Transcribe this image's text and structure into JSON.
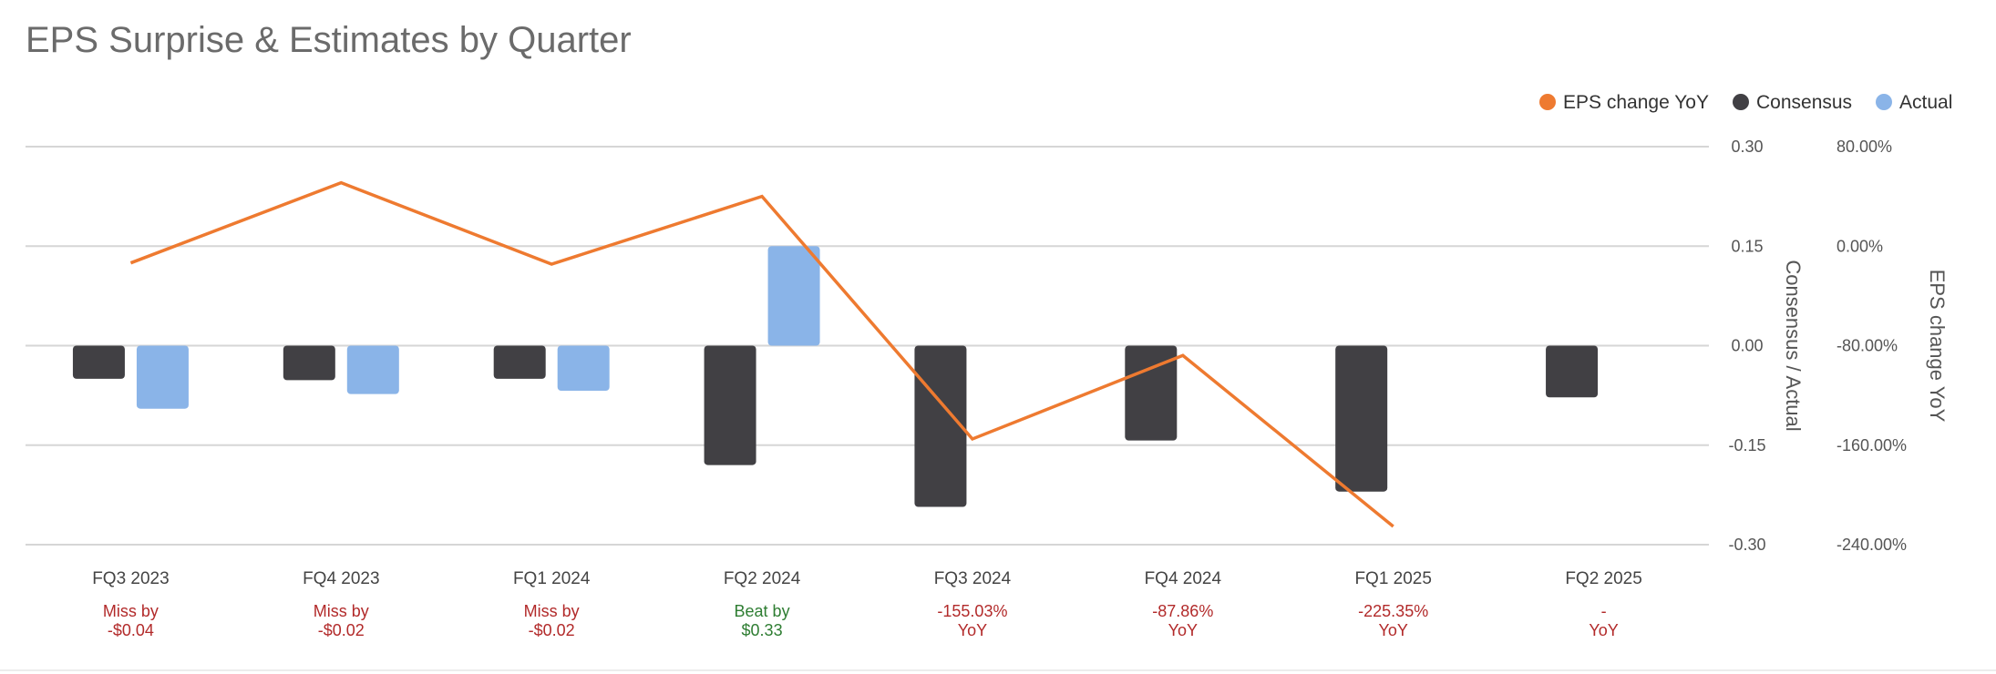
{
  "chart_data": {
    "type": "bar",
    "title": "EPS Surprise & Estimates by Quarter",
    "categories": [
      "FQ3 2023",
      "FQ4 2023",
      "FQ1 2024",
      "FQ2 2024",
      "FQ3 2024",
      "FQ4 2024",
      "FQ1 2025",
      "FQ2 2025"
    ],
    "series": [
      {
        "name": "Consensus",
        "kind": "bar",
        "axis": "left",
        "color": "#414044",
        "values": [
          -0.05,
          -0.052,
          -0.05,
          -0.18,
          -0.243,
          -0.143,
          -0.22,
          -0.078
        ]
      },
      {
        "name": "Actual",
        "kind": "bar",
        "axis": "left",
        "color": "#8ab4e8",
        "values": [
          -0.095,
          -0.073,
          -0.068,
          0.15,
          null,
          null,
          null,
          null
        ]
      },
      {
        "name": "EPS change YoY",
        "kind": "line",
        "axis": "right",
        "color": "#ee7a30",
        "values": [
          -13.5,
          51.0,
          -14.5,
          40.0,
          -155.03,
          -87.86,
          -225.35,
          null
        ]
      }
    ],
    "legend": [
      "EPS change YoY",
      "Consensus",
      "Actual"
    ],
    "legend_position": "top-right",
    "y_left": {
      "label": "Consensus / Actual",
      "lim": [
        -0.3,
        0.3
      ],
      "ticks": [
        "0.30",
        "0.15",
        "0.00",
        "-0.15",
        "-0.30"
      ]
    },
    "y_right": {
      "label": "EPS change YoY",
      "lim": [
        -240,
        80
      ],
      "ticks": [
        "80.00%",
        "0.00%",
        "-80.00%",
        "-160.00%",
        "-240.00%"
      ]
    },
    "grid": true,
    "annotations": [
      {
        "line1": "Miss by",
        "line2": "-$0.04",
        "status": "miss"
      },
      {
        "line1": "Miss by",
        "line2": "-$0.02",
        "status": "miss"
      },
      {
        "line1": "Miss by",
        "line2": "-$0.02",
        "status": "miss"
      },
      {
        "line1": "Beat by",
        "line2": "$0.33",
        "status": "beat"
      },
      {
        "line1": "-155.03%",
        "line2": "YoY",
        "status": "miss"
      },
      {
        "line1": "-87.86%",
        "line2": "YoY",
        "status": "miss"
      },
      {
        "line1": "-225.35%",
        "line2": "YoY",
        "status": "miss"
      },
      {
        "line1": "-",
        "line2": "YoY",
        "status": "miss"
      }
    ],
    "colors": {
      "miss": "#b22a2a",
      "beat": "#2e7d32",
      "grid": "#d6d6d6",
      "tick": "#555555"
    }
  }
}
